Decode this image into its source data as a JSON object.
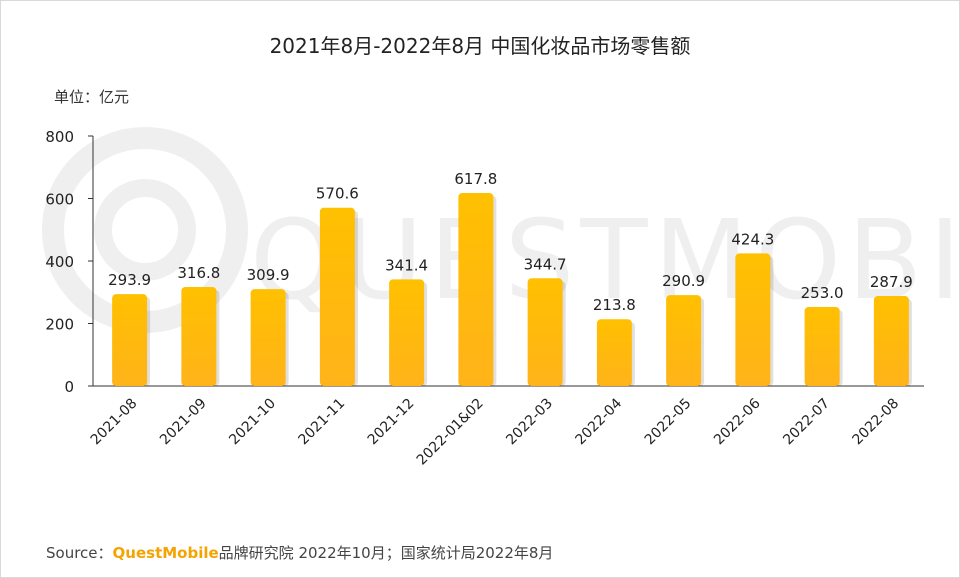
{
  "title": "2021年8月-2022年8月 中国化妆品市场零售额",
  "unit_label": "单位：亿元",
  "watermark": "QUESTMOBILE",
  "source": {
    "prefix": "Source：",
    "brand": "QuestMobile",
    "rest": "品牌研究院 2022年10月；国家统计局2022年8月"
  },
  "colors": {
    "bar_top": "#FFC000",
    "bar_bottom": "#FFB31A",
    "axis": "#333333",
    "text": "#222222",
    "brand": "#F5A300"
  },
  "chart_data": {
    "type": "bar",
    "title": "2021年8月-2022年8月 中国化妆品市场零售额",
    "ylabel": "单位：亿元",
    "categories": [
      "2021-08",
      "2021-09",
      "2021-10",
      "2021-11",
      "2021-12",
      "2022-01&02",
      "2022-03",
      "2022-04",
      "2022-05",
      "2022-06",
      "2022-07",
      "2022-08"
    ],
    "values": [
      293.9,
      316.8,
      309.9,
      570.6,
      341.4,
      617.8,
      344.7,
      213.8,
      290.9,
      424.3,
      253.0,
      287.9
    ],
    "value_labels": [
      "293.9",
      "316.8",
      "309.9",
      "570.6",
      "341.4",
      "617.8",
      "344.7",
      "213.8",
      "290.9",
      "424.3",
      "253.0",
      "287.9"
    ],
    "ylim": [
      0,
      800
    ],
    "yticks": [
      "0",
      "200",
      "400",
      "600",
      "800"
    ],
    "grid": false,
    "legend": "none"
  }
}
